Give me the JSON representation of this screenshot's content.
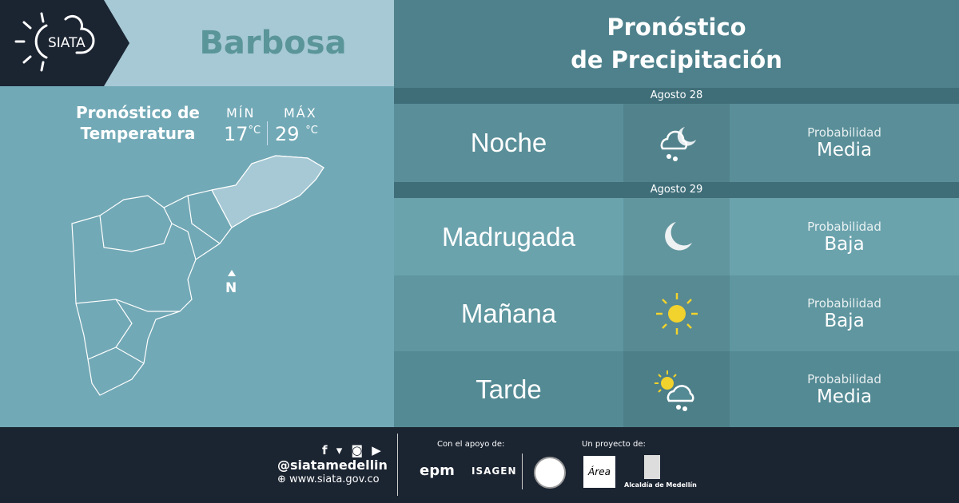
{
  "header": {
    "logo_text": "SIATA",
    "city": "Barbosa"
  },
  "temperature": {
    "title_line1": "Pronóstico de",
    "title_line2": "Temperatura",
    "min_label": "MÍN",
    "max_label": "MÁX",
    "min_value": "17",
    "max_value": "29",
    "unit": "°C"
  },
  "map": {
    "north_label": "N"
  },
  "precip": {
    "title_line1": "Pronóstico",
    "title_line2": "de Precipitación",
    "dates": [
      "Agosto 28",
      "Agosto 29"
    ],
    "rows": [
      {
        "period": "Noche",
        "icon": "cloud-moon-rain-icon",
        "prob_label": "Probabilidad",
        "prob_value": "Media"
      },
      {
        "period": "Madrugada",
        "icon": "moon-icon",
        "prob_label": "Probabilidad",
        "prob_value": "Baja"
      },
      {
        "period": "Mañana",
        "icon": "sun-icon",
        "prob_label": "Probabilidad",
        "prob_value": "Baja"
      },
      {
        "period": "Tarde",
        "icon": "sun-cloud-rain-icon",
        "prob_label": "Probabilidad",
        "prob_value": "Media"
      }
    ]
  },
  "footer": {
    "handle": "@siatamedellin",
    "website": "www.siata.gov.co",
    "support_label": "Con el apoyo de:",
    "project_label": "Un proyecto de:",
    "sponsor1": "epm",
    "sponsor2": "ISAGEN",
    "partner_area": "Área",
    "partner_alcaldia": "Alcaldía de Medellín"
  }
}
